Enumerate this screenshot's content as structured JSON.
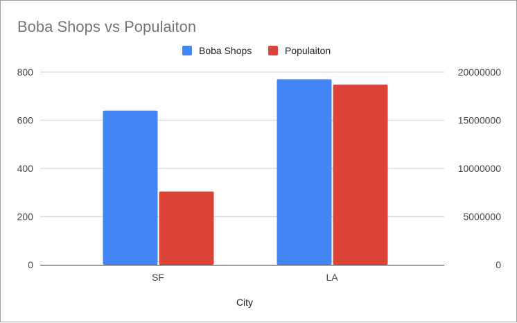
{
  "chart_data": {
    "type": "bar",
    "title": "Boba Shops vs Populaiton",
    "xlabel": "City",
    "categories": [
      "SF",
      "LA"
    ],
    "series": [
      {
        "name": "Boba Shops",
        "values": [
          640,
          770
        ],
        "axis": "left",
        "color": "#4285f4"
      },
      {
        "name": "Populaiton",
        "values": [
          7600000,
          18700000
        ],
        "axis": "right",
        "color": "#db4437"
      }
    ],
    "y_left": {
      "ylim": [
        0,
        800
      ],
      "ticks": [
        "0",
        "200",
        "400",
        "600",
        "800"
      ]
    },
    "y_right": {
      "ylim": [
        0,
        20000000
      ],
      "ticks": [
        "0",
        "5000000",
        "10000000",
        "15000000",
        "20000000"
      ]
    },
    "grid": true,
    "legend": "top"
  }
}
